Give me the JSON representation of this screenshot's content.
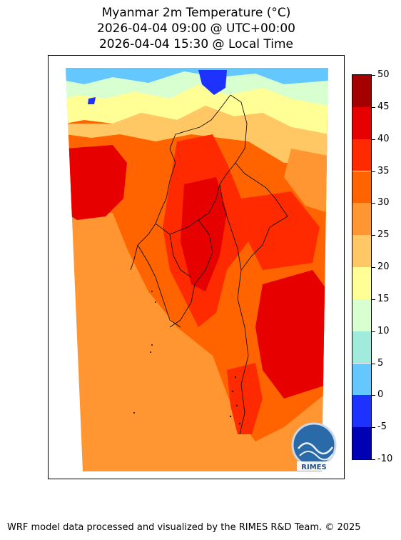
{
  "titles": {
    "line1": "Myanmar 2m Temperature (°C)",
    "line2": "2026-04-04 09:00 @ UTC+00:00",
    "line3": "2026-04-04 15:30 @ Local Time"
  },
  "colorbar": {
    "ticks": [
      "50",
      "45",
      "40",
      "35",
      "30",
      "25",
      "20",
      "15",
      "10",
      "5",
      "0",
      "-5",
      "-10"
    ],
    "bands": [
      {
        "from": 45,
        "to": 50,
        "color": "#a50000"
      },
      {
        "from": 40,
        "to": 45,
        "color": "#e60000"
      },
      {
        "from": 35,
        "to": 40,
        "color": "#ff2a00"
      },
      {
        "from": 30,
        "to": 35,
        "color": "#ff6400"
      },
      {
        "from": 25,
        "to": 30,
        "color": "#ff9632"
      },
      {
        "from": 20,
        "to": 25,
        "color": "#ffc864"
      },
      {
        "from": 15,
        "to": 20,
        "color": "#ffff96"
      },
      {
        "from": 10,
        "to": 15,
        "color": "#d7ffd0"
      },
      {
        "from": 5,
        "to": 10,
        "color": "#a0ebdc"
      },
      {
        "from": 0,
        "to": 5,
        "color": "#64c8ff"
      },
      {
        "from": -5,
        "to": 0,
        "color": "#1e32ff"
      },
      {
        "from": -10,
        "to": -5,
        "color": "#0000b4"
      }
    ]
  },
  "logo": {
    "text": "RIMES"
  },
  "footer": "WRF model data processed and visualized by the RIMES R&D Team. © 2025"
}
